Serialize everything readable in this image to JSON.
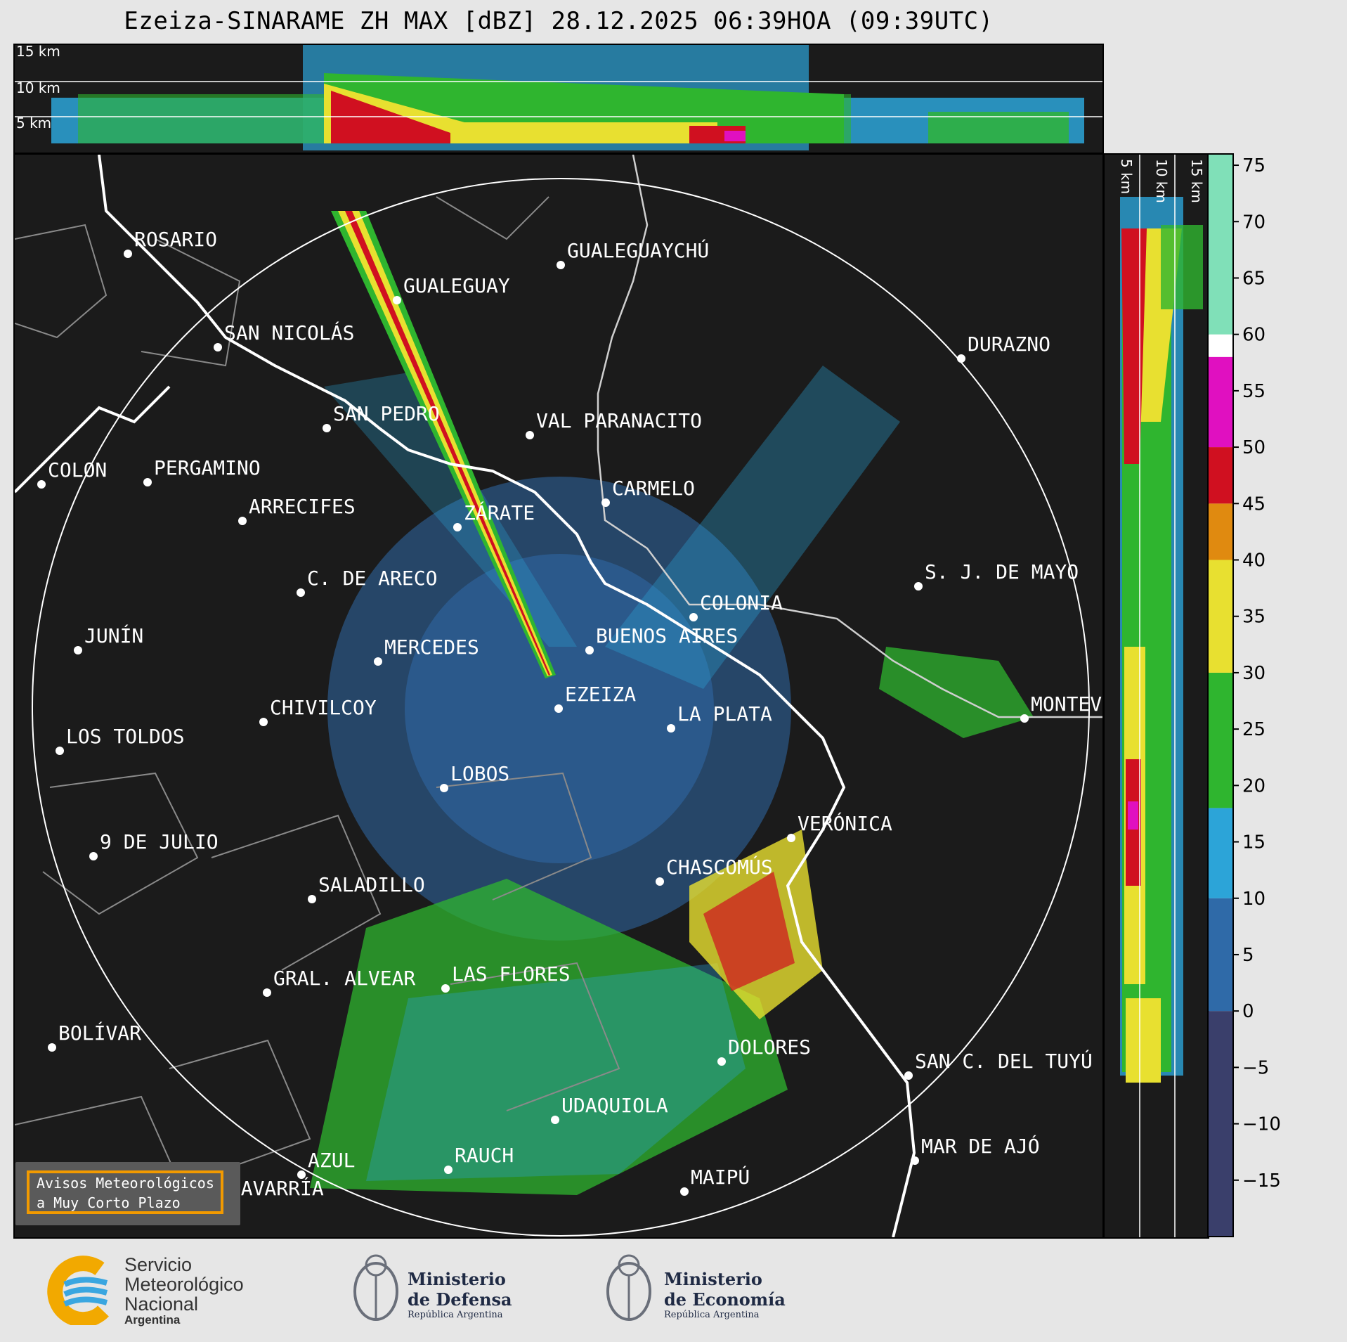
{
  "title": "Ezeiza-SINARAME ZH MAX [dBZ] 28.12.2025 06:39HOA (09:39UTC)",
  "top_panel": {
    "height_labels": [
      "15 km",
      "10 km",
      "5 km"
    ]
  },
  "side_panel": {
    "height_labels": [
      "5 km",
      "10 km",
      "15 km"
    ]
  },
  "colorbar": {
    "unit": "dBZ",
    "ticks": [
      "75",
      "70",
      "65",
      "60",
      "55",
      "50",
      "45",
      "40",
      "35",
      "30",
      "25",
      "20",
      "15",
      "10",
      "5",
      "0",
      "−5",
      "−10",
      "−15"
    ],
    "range": [
      -20,
      76
    ],
    "colors": {
      "lt0": "#3a3f6b",
      "0to10": "#2f6aa8",
      "10to18": "#2ca4d8",
      "18to30": "#2fb52f",
      "30to40": "#e8e030",
      "40to45": "#e08a10",
      "45to50": "#d01020",
      "50to58": "#e010c0",
      "58to60": "#ffffff",
      "60plus": "#80e0b8"
    }
  },
  "cities": [
    {
      "name": "ROSARIO"
    },
    {
      "name": "GUALEGUAYCHÚ"
    },
    {
      "name": "GUALEGUAY"
    },
    {
      "name": "SAN NICOLÁS"
    },
    {
      "name": "DURAZNO"
    },
    {
      "name": "SAN PEDRO"
    },
    {
      "name": "VAL PARANACITO"
    },
    {
      "name": "COLON"
    },
    {
      "name": "PERGAMINO"
    },
    {
      "name": "CARMELO"
    },
    {
      "name": "ARRECIFES"
    },
    {
      "name": "ZÁRATE"
    },
    {
      "name": "S. J. DE MAYO"
    },
    {
      "name": "C. DE ARECO"
    },
    {
      "name": "COLONIA"
    },
    {
      "name": "JUNÍN"
    },
    {
      "name": "BUENOS AIRES"
    },
    {
      "name": "MERCEDES"
    },
    {
      "name": "EZEIZA"
    },
    {
      "name": "CHIVILCOY"
    },
    {
      "name": "MONTEV"
    },
    {
      "name": "LA PLATA"
    },
    {
      "name": "LOS TOLDOS"
    },
    {
      "name": "LOBOS"
    },
    {
      "name": "VERÓNICA"
    },
    {
      "name": "9 DE JULIO"
    },
    {
      "name": "CHASCOMÚS"
    },
    {
      "name": "SALADILLO"
    },
    {
      "name": "GRAL. ALVEAR"
    },
    {
      "name": "LAS FLORES"
    },
    {
      "name": "BOLÍVAR"
    },
    {
      "name": "DOLORES"
    },
    {
      "name": "SAN C. DEL TUYÚ"
    },
    {
      "name": "UDAQUIOLA"
    },
    {
      "name": "MAR DE AJÓ"
    },
    {
      "name": "AZUL"
    },
    {
      "name": "RAUCH"
    },
    {
      "name": "MAIPÚ"
    },
    {
      "name": "OLAVARRÍA"
    }
  ],
  "warning_box": {
    "text": "Avisos Meteorológicos\na Muy Corto Plazo"
  },
  "footer": {
    "smn": [
      "Servicio",
      "Meteorológico",
      "Nacional",
      "Argentina"
    ],
    "defensa": [
      "Ministerio",
      "de Defensa",
      "República Argentina"
    ],
    "economia": [
      "Ministerio",
      "de Economía",
      "República Argentina"
    ]
  }
}
